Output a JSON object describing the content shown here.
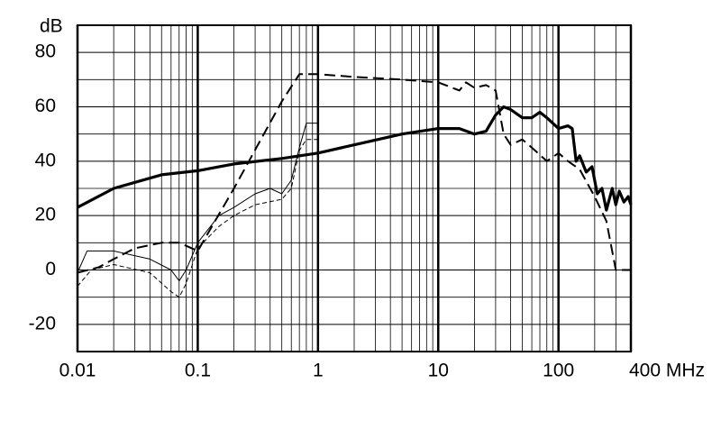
{
  "chart_data": {
    "type": "line",
    "y_label": "dB",
    "xscale": "log",
    "xlim": [
      0.01,
      400
    ],
    "xticks": [
      0.01,
      0.1,
      1,
      10,
      100,
      {
        "value": 400,
        "label": "400 MHz"
      }
    ],
    "ylim": [
      -30,
      90
    ],
    "yticks": [
      -20,
      0,
      20,
      40,
      60,
      80
    ],
    "y_minor_ticks": [
      -30,
      -10,
      10,
      30,
      50,
      70,
      90
    ],
    "grid": true,
    "minor_grid": true,
    "series": [
      {
        "color": "#000000",
        "style": "thick-solid",
        "x": [
          0.01,
          0.02,
          0.05,
          0.1,
          0.2,
          0.5,
          1,
          2,
          5,
          10,
          15,
          20,
          25,
          30,
          35,
          40,
          50,
          60,
          70,
          80,
          100,
          120,
          130,
          140,
          150,
          170,
          190,
          210,
          230,
          250,
          280,
          300,
          320,
          350,
          380,
          400
        ],
        "y": [
          23,
          30,
          35,
          36.5,
          39,
          41,
          43,
          46,
          50,
          52,
          52,
          50,
          51,
          57,
          60,
          59,
          56,
          56,
          58,
          56,
          52,
          53,
          52,
          40,
          42,
          36,
          38,
          28,
          30,
          22,
          30,
          24,
          29,
          25,
          27,
          24
        ]
      },
      {
        "color": "#000000",
        "style": "thin-solid",
        "x": [
          0.01,
          0.012,
          0.02,
          0.04,
          0.06,
          0.07,
          0.08,
          0.1,
          0.15,
          0.2,
          0.3,
          0.4,
          0.5,
          0.6,
          0.7,
          0.8,
          1
        ],
        "y": [
          -1,
          7,
          7,
          4,
          0,
          -4,
          0,
          10,
          20,
          23,
          28,
          30,
          28,
          33,
          45,
          54,
          54
        ]
      },
      {
        "color": "#000000",
        "style": "thin-dashed",
        "x": [
          0.01,
          0.013,
          0.02,
          0.04,
          0.06,
          0.07,
          0.08,
          0.1,
          0.15,
          0.2,
          0.3,
          0.5,
          0.6,
          0.7,
          0.8,
          1
        ],
        "y": [
          -6,
          0,
          2,
          -1,
          -8,
          -10,
          -5,
          8,
          16,
          20,
          24,
          26,
          30,
          44,
          48,
          48
        ]
      },
      {
        "color": "#000000",
        "style": "thick-dashed",
        "x": [
          0.01,
          0.015,
          0.02,
          0.03,
          0.05,
          0.07,
          0.1,
          0.2,
          0.5,
          0.7,
          1,
          2,
          5,
          10,
          15,
          17,
          20,
          25,
          30,
          35,
          40,
          50,
          60,
          80,
          100,
          120,
          150,
          200,
          250,
          300,
          400
        ],
        "y": [
          -1,
          1,
          4,
          8,
          10,
          10,
          7,
          30,
          62,
          72,
          72,
          71,
          70,
          69,
          66,
          69,
          67,
          68,
          66,
          50,
          46,
          48,
          45,
          40,
          43,
          40,
          37,
          27,
          18,
          0,
          0
        ]
      }
    ]
  }
}
